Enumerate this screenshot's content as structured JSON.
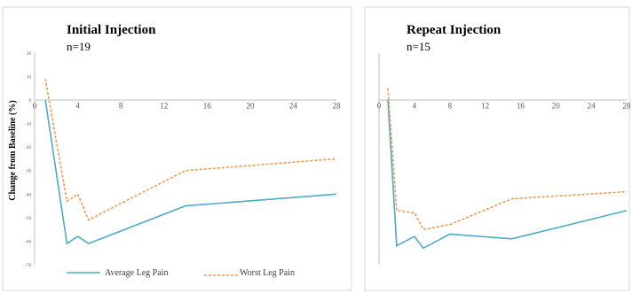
{
  "colors": {
    "average": "#4bacc6",
    "worst": "#f79646"
  },
  "legend": {
    "average": "Average Leg Pain",
    "worst": "Worst Leg Pain"
  },
  "chart_data": [
    {
      "type": "line",
      "title": "Initial Injection",
      "subtitle": "n=19",
      "xlabel": "",
      "ylabel": "Change from Baseline (%)",
      "xlim": [
        0,
        28
      ],
      "ylim": [
        -70,
        20
      ],
      "xticks": [
        "0",
        "4",
        "8",
        "12",
        "16",
        "20",
        "24",
        "28"
      ],
      "yticks": [
        "20",
        "10",
        "0",
        "-10",
        "-20",
        "-30",
        "-40",
        "-50",
        "-60",
        "-70"
      ],
      "grid": false,
      "series": [
        {
          "name": "Average Leg Pain",
          "x": [
            1,
            3,
            4,
            5,
            14,
            28
          ],
          "y": [
            0,
            -61,
            -58,
            -61,
            -45,
            -40
          ]
        },
        {
          "name": "Worst Leg Pain",
          "x": [
            1,
            3,
            4,
            5,
            14,
            28
          ],
          "y": [
            9,
            -43,
            -40,
            -51,
            -30,
            -25
          ]
        }
      ]
    },
    {
      "type": "line",
      "title": "Repeat Injection",
      "subtitle": "n=15",
      "xlabel": "",
      "ylabel": "",
      "xlim": [
        0,
        28
      ],
      "ylim": [
        -70,
        20
      ],
      "xticks": [
        "0",
        "4",
        "8",
        "12",
        "16",
        "20",
        "24",
        "28"
      ],
      "yticks": [],
      "grid": false,
      "series": [
        {
          "name": "Average Leg Pain",
          "x": [
            1,
            2,
            4,
            5,
            8,
            15,
            28
          ],
          "y": [
            0,
            -62,
            -58,
            -63,
            -57,
            -59,
            -47
          ]
        },
        {
          "name": "Worst Leg Pain",
          "x": [
            1,
            2,
            4,
            5,
            8,
            15,
            28
          ],
          "y": [
            5,
            -47,
            -48,
            -55,
            -53,
            -42,
            -39
          ]
        }
      ]
    }
  ]
}
